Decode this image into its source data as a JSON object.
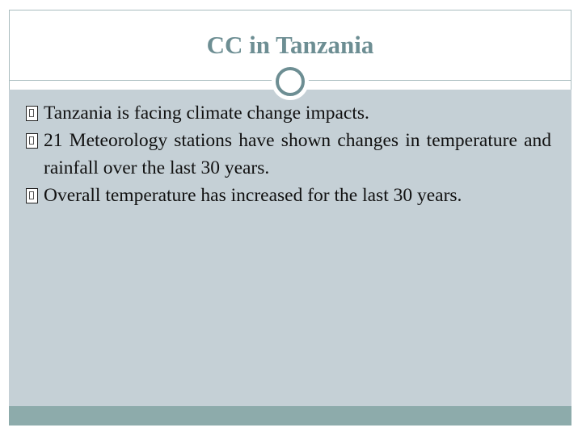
{
  "slide": {
    "title": "CC in Tanzania",
    "bullets": [
      "Tanzania is facing climate change impacts.",
      "21 Meteorology stations have shown changes in temperature and rainfall over the last 30 years.",
      "Overall temperature has increased for the last 30 years."
    ]
  },
  "colors": {
    "title": "#6d8e93",
    "content_background": "#c5d0d6",
    "footer_band": "#8dabab",
    "ring": "#6d8e93"
  },
  "icons": {
    "divider": "circle-ring-icon",
    "bullet": "bullet-box-icon"
  }
}
